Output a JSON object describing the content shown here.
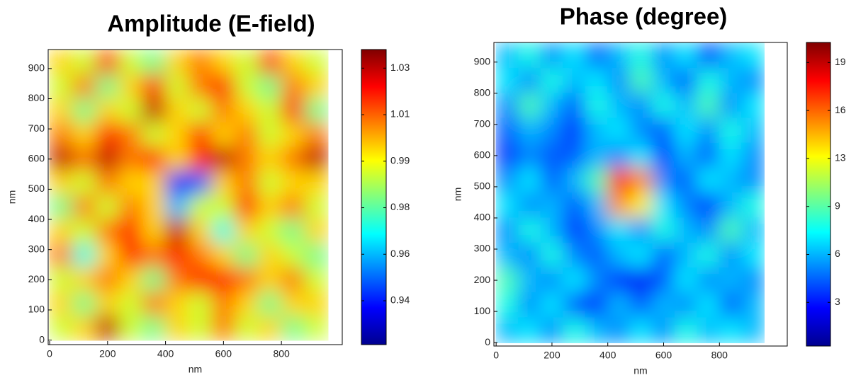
{
  "chart_data": [
    {
      "type": "heatmap",
      "title": "Amplitude (E-field)",
      "xlabel": "nm",
      "ylabel": "nm",
      "colormap": "jet",
      "x": [
        40,
        120,
        200,
        280,
        360,
        440,
        520,
        600,
        680,
        760,
        840,
        920
      ],
      "y": [
        920,
        840,
        760,
        680,
        600,
        520,
        440,
        360,
        280,
        200,
        120,
        40
      ],
      "z": [
        [
          1.0,
          0.99,
          1.02,
          0.99,
          0.98,
          1.0,
          1.01,
          1.0,
          0.99,
          1.02,
          1.0,
          0.99
        ],
        [
          0.99,
          1.01,
          0.98,
          1.0,
          1.02,
          0.99,
          1.01,
          1.02,
          0.99,
          0.98,
          1.01,
          1.0
        ],
        [
          1.0,
          0.98,
          1.0,
          0.99,
          1.03,
          1.0,
          0.99,
          1.01,
          1.0,
          0.99,
          1.02,
          0.98
        ],
        [
          1.01,
          1.0,
          1.02,
          1.01,
          0.99,
          1.0,
          1.02,
          1.0,
          1.01,
          0.99,
          1.0,
          1.01
        ],
        [
          1.03,
          1.01,
          1.03,
          1.01,
          1.02,
          1.0,
          1.02,
          1.03,
          1.01,
          1.0,
          1.01,
          1.03
        ],
        [
          1.0,
          0.99,
          1.01,
          1.0,
          1.0,
          0.94,
          0.95,
          1.0,
          1.01,
          0.99,
          1.0,
          1.0
        ],
        [
          0.98,
          1.01,
          0.99,
          1.01,
          1.0,
          0.96,
          0.99,
          0.99,
          1.02,
          1.0,
          1.01,
          0.99
        ],
        [
          1.0,
          0.99,
          1.01,
          1.02,
          1.0,
          1.03,
          1.0,
          0.97,
          1.0,
          0.99,
          0.98,
          1.0
        ],
        [
          1.01,
          0.97,
          1.0,
          1.02,
          1.01,
          1.02,
          1.01,
          1.0,
          0.98,
          1.0,
          0.99,
          0.98
        ],
        [
          0.99,
          1.0,
          1.01,
          1.0,
          0.98,
          1.01,
          1.02,
          1.02,
          1.01,
          1.0,
          1.01,
          0.99
        ],
        [
          1.0,
          0.98,
          1.0,
          0.99,
          1.01,
          1.0,
          0.99,
          1.01,
          1.0,
          0.98,
          1.0,
          1.0
        ],
        [
          0.99,
          1.0,
          1.03,
          0.99,
          0.98,
          1.0,
          0.99,
          1.01,
          0.99,
          1.0,
          0.98,
          0.99
        ]
      ],
      "xlim": [
        -5,
        1010
      ],
      "ylim": [
        -15,
        963
      ],
      "xticks": [
        0,
        200,
        400,
        600,
        800
      ],
      "yticks": [
        0,
        100,
        200,
        300,
        400,
        500,
        600,
        700,
        800,
        900
      ],
      "clim": [
        0.926,
        1.037
      ],
      "cticks": [
        {
          "value": 1.03,
          "label": "1.03"
        },
        {
          "value": 1.0125,
          "label": "1.01"
        },
        {
          "value": 0.995,
          "label": "0.99"
        },
        {
          "value": 0.9775,
          "label": "0.98"
        },
        {
          "value": 0.96,
          "label": "0.96"
        },
        {
          "value": 0.9425,
          "label": "0.94"
        }
      ]
    },
    {
      "type": "heatmap",
      "title": "Phase (degree)",
      "xlabel": "nm",
      "ylabel": "nm",
      "colormap": "jet",
      "x": [
        40,
        120,
        200,
        280,
        360,
        440,
        520,
        600,
        680,
        760,
        840,
        920
      ],
      "y": [
        920,
        840,
        760,
        680,
        600,
        520,
        440,
        360,
        280,
        200,
        120,
        40
      ],
      "z": [
        [
          6,
          8,
          5,
          7,
          4,
          6,
          8,
          5,
          7,
          3,
          6,
          7
        ],
        [
          7,
          5,
          8,
          6,
          7,
          5,
          9,
          6,
          4,
          8,
          6,
          5
        ],
        [
          5,
          9,
          6,
          4,
          8,
          6,
          5,
          8,
          6,
          9,
          5,
          7
        ],
        [
          4,
          6,
          5,
          3,
          6,
          7,
          5,
          4,
          7,
          5,
          8,
          6
        ],
        [
          3,
          5,
          4,
          4,
          6,
          5,
          7,
          3,
          6,
          4,
          7,
          5
        ],
        [
          5,
          7,
          4,
          6,
          9,
          18,
          15,
          5,
          4,
          7,
          6,
          5
        ],
        [
          7,
          5,
          6,
          4,
          6,
          15,
          13,
          7,
          5,
          3,
          6,
          8
        ],
        [
          5,
          8,
          6,
          3,
          5,
          7,
          5,
          8,
          6,
          5,
          9,
          6
        ],
        [
          6,
          5,
          8,
          5,
          4,
          6,
          7,
          4,
          6,
          8,
          5,
          7
        ],
        [
          9,
          6,
          5,
          7,
          5,
          3,
          2,
          4,
          7,
          5,
          6,
          5
        ],
        [
          8,
          5,
          7,
          4,
          3,
          6,
          4,
          6,
          5,
          7,
          4,
          6
        ],
        [
          6,
          7,
          5,
          8,
          6,
          5,
          7,
          5,
          8,
          6,
          7,
          6
        ]
      ],
      "xlim": [
        -8,
        1043
      ],
      "ylim": [
        -11,
        963
      ],
      "xticks": [
        0,
        200,
        400,
        600,
        800
      ],
      "yticks": [
        0,
        100,
        200,
        300,
        400,
        500,
        600,
        700,
        800,
        900
      ],
      "clim": [
        -0.5,
        20.7
      ],
      "cticks": [
        {
          "value": 19.3,
          "label": "19"
        },
        {
          "value": 15.95,
          "label": "16"
        },
        {
          "value": 12.6,
          "label": "13"
        },
        {
          "value": 9.25,
          "label": "9"
        },
        {
          "value": 5.9,
          "label": "6"
        },
        {
          "value": 2.55,
          "label": "3"
        }
      ]
    }
  ]
}
